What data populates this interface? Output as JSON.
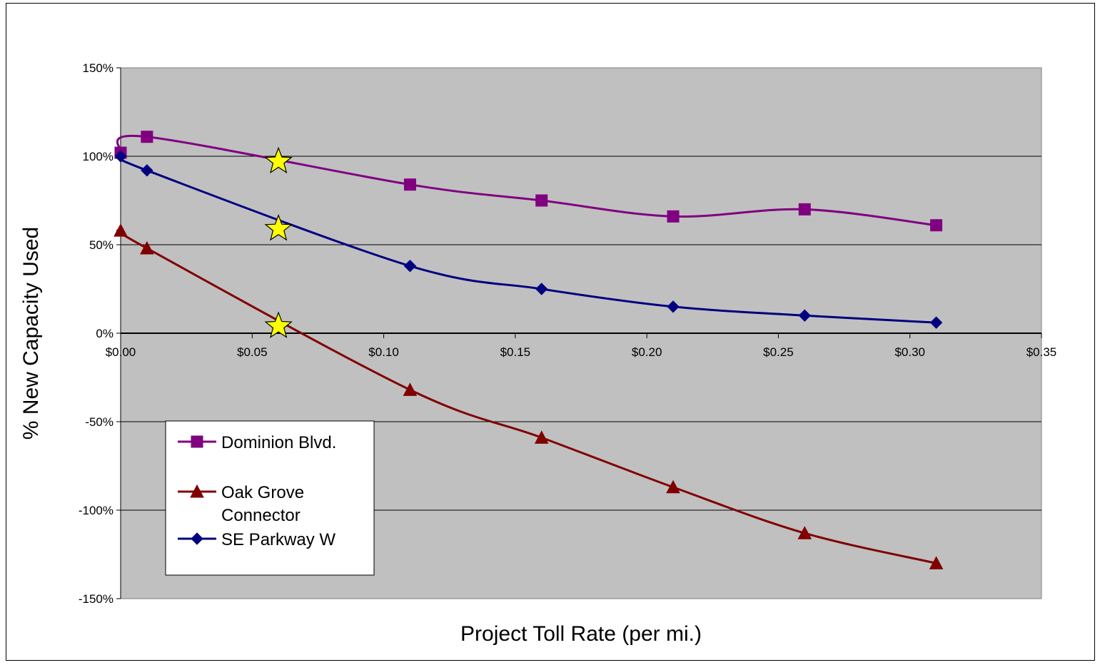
{
  "chart_data": {
    "type": "line",
    "title": "",
    "xlabel": "Project Toll Rate (per mi.)",
    "ylabel": "% New Capacity Used",
    "xlim": [
      0,
      0.35
    ],
    "ylim": [
      -150,
      150
    ],
    "x_ticks": [
      {
        "value": 0.0,
        "label": "$0.00"
      },
      {
        "value": 0.05,
        "label": "$0.05"
      },
      {
        "value": 0.1,
        "label": "$0.10"
      },
      {
        "value": 0.15,
        "label": "$0.15"
      },
      {
        "value": 0.2,
        "label": "$0.20"
      },
      {
        "value": 0.25,
        "label": "$0.25"
      },
      {
        "value": 0.3,
        "label": "$0.30"
      },
      {
        "value": 0.35,
        "label": "$0.35"
      }
    ],
    "y_ticks": [
      {
        "value": 150,
        "label": "150%"
      },
      {
        "value": 100,
        "label": "100%"
      },
      {
        "value": 50,
        "label": "50%"
      },
      {
        "value": 0,
        "label": "0%"
      },
      {
        "value": -50,
        "label": "-50%"
      },
      {
        "value": -100,
        "label": "-100%"
      },
      {
        "value": -150,
        "label": "-150%"
      }
    ],
    "grid": "horizontal",
    "legend_position": "bottom-left",
    "plot_background": "#c0c0c0",
    "series": [
      {
        "name": "Dominion Blvd.",
        "color": "#800080",
        "marker": "square",
        "x": [
          0.0,
          0.01,
          0.11,
          0.16,
          0.21,
          0.26,
          0.31
        ],
        "y": [
          102,
          111,
          84,
          75,
          66,
          70,
          61
        ]
      },
      {
        "name": "Oak Grove Connector",
        "color": "#800000",
        "marker": "triangle",
        "x": [
          0.0,
          0.01,
          0.11,
          0.16,
          0.21,
          0.26,
          0.31
        ],
        "y": [
          58,
          48,
          -32,
          -59,
          -87,
          -113,
          -130
        ]
      },
      {
        "name": "SE Parkway W",
        "color": "#000080",
        "marker": "diamond",
        "x": [
          0.0,
          0.01,
          0.11,
          0.16,
          0.21,
          0.26,
          0.31
        ],
        "y": [
          100,
          92,
          38,
          25,
          15,
          10,
          6
        ]
      }
    ],
    "legend": [
      {
        "lines": [
          "Dominion Blvd."
        ],
        "series": 0
      },
      {
        "lines": [
          "Oak Grove",
          "Connector"
        ],
        "series": 1
      },
      {
        "lines": [
          "SE Parkway W"
        ],
        "series": 2
      }
    ],
    "annotations": [
      {
        "type": "star",
        "x": 0.06,
        "y": 97,
        "color": "#ffff00"
      },
      {
        "type": "star",
        "x": 0.06,
        "y": 59,
        "color": "#ffff00"
      },
      {
        "type": "star",
        "x": 0.06,
        "y": 4,
        "color": "#ffff00"
      }
    ]
  }
}
